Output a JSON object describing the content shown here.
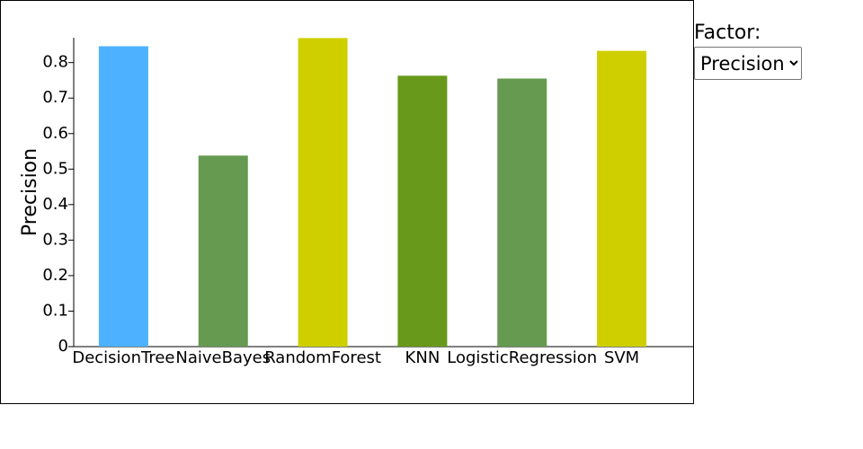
{
  "chart_data": {
    "type": "bar",
    "y_label": "Precision",
    "categories": [
      "DecisionTree",
      "NaiveBayes",
      "RandomForest",
      "KNN",
      "LogisticRegression",
      "SVM"
    ],
    "values": [
      0.846,
      0.538,
      0.869,
      0.763,
      0.755,
      0.833
    ],
    "colors": [
      "#4db1ff",
      "#659a50",
      "#cfcf00",
      "#68991a",
      "#659a50",
      "#cfcf00"
    ],
    "ylim": [
      0,
      0.87
    ],
    "yticks": [
      0,
      0.1,
      0.2,
      0.3,
      0.4,
      0.5,
      0.6,
      0.7,
      0.8
    ]
  },
  "controls": {
    "label": "Factor:",
    "options": [
      "Precision"
    ]
  }
}
